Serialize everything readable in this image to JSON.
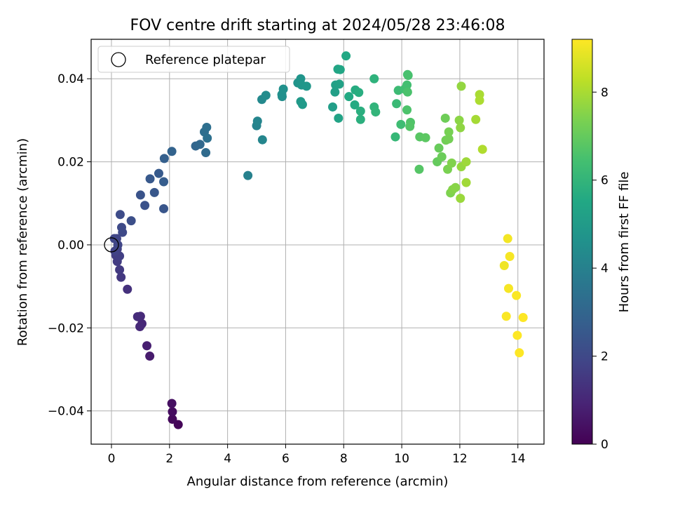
{
  "chart_data": {
    "type": "scatter",
    "title": "FOV centre drift starting at 2024/05/28 23:46:08",
    "xlabel": "Angular distance from reference (arcmin)",
    "ylabel": "Rotation from reference (arcmin)",
    "xlim": [
      -0.7,
      14.9
    ],
    "ylim": [
      -0.048,
      0.0495
    ],
    "xticks": [
      0,
      2,
      4,
      6,
      8,
      10,
      12,
      14
    ],
    "yticks": [
      -0.04,
      -0.02,
      0.0,
      0.02,
      0.04
    ],
    "ytick_labels": [
      "−0.04",
      "−0.02",
      "0.00",
      "0.02",
      "0.04"
    ],
    "grid": true,
    "legend": {
      "placement": "top-left",
      "entries": [
        {
          "label": "Reference platepar",
          "marker": "open-circle"
        }
      ]
    },
    "reference_point": {
      "x": 0.0,
      "y": 0.0
    },
    "colorbar": {
      "label": "Hours from first FF file",
      "range": [
        0,
        9.2
      ],
      "ticks": [
        0,
        2,
        4,
        6,
        8
      ],
      "colormap": "viridis"
    },
    "series": [
      {
        "points": [
          [
            2.3,
            -0.0433,
            0.1
          ],
          [
            2.1,
            -0.042,
            0.2
          ],
          [
            2.1,
            -0.0402,
            0.3
          ],
          [
            2.08,
            -0.0382,
            0.4
          ],
          [
            1.32,
            -0.0268,
            0.7
          ],
          [
            1.22,
            -0.0243,
            0.8
          ],
          [
            1.05,
            -0.019,
            1.0
          ],
          [
            0.98,
            -0.0197,
            1.05
          ],
          [
            1.0,
            -0.0172,
            1.1
          ],
          [
            0.9,
            -0.0173,
            1.15
          ],
          [
            0.55,
            -0.0107,
            1.3
          ],
          [
            0.33,
            -0.0078,
            1.5
          ],
          [
            0.28,
            -0.006,
            1.55
          ],
          [
            0.2,
            -0.004,
            1.6
          ],
          [
            0.15,
            -0.0025,
            1.65
          ],
          [
            0.28,
            -0.0027,
            1.7
          ],
          [
            0.2,
            -0.001,
            1.75
          ],
          [
            0.12,
            -0.0015,
            1.8
          ],
          [
            0.18,
            0.0015,
            1.85
          ],
          [
            0.22,
            0.0,
            1.9
          ],
          [
            0.1,
            0.0015,
            1.9
          ],
          [
            0.38,
            0.003,
            2.0
          ],
          [
            0.35,
            0.0042,
            2.05
          ],
          [
            0.3,
            0.0073,
            2.1
          ],
          [
            0.68,
            0.0058,
            2.2
          ],
          [
            1.15,
            0.0095,
            2.3
          ],
          [
            1.0,
            0.012,
            2.35
          ],
          [
            1.8,
            0.0087,
            2.45
          ],
          [
            1.48,
            0.0126,
            2.5
          ],
          [
            1.33,
            0.0159,
            2.55
          ],
          [
            1.63,
            0.0172,
            2.6
          ],
          [
            1.8,
            0.0152,
            2.7
          ],
          [
            1.82,
            0.0208,
            2.8
          ],
          [
            2.08,
            0.0225,
            2.9
          ],
          [
            2.9,
            0.0238,
            3.0
          ],
          [
            3.05,
            0.0242,
            3.1
          ],
          [
            3.25,
            0.0222,
            3.2
          ],
          [
            3.2,
            0.0272,
            3.3
          ],
          [
            3.28,
            0.0283,
            3.35
          ],
          [
            3.3,
            0.0257,
            3.4
          ],
          [
            4.7,
            0.0167,
            4.0
          ],
          [
            5.0,
            0.0287,
            4.1
          ],
          [
            5.03,
            0.0298,
            4.15
          ],
          [
            5.2,
            0.0253,
            4.2
          ],
          [
            5.18,
            0.035,
            4.3
          ],
          [
            5.32,
            0.036,
            4.4
          ],
          [
            5.88,
            0.0357,
            4.5
          ],
          [
            5.87,
            0.0362,
            4.55
          ],
          [
            5.92,
            0.0375,
            4.6
          ],
          [
            6.42,
            0.039,
            4.7
          ],
          [
            6.52,
            0.04,
            4.75
          ],
          [
            6.55,
            0.0385,
            4.8
          ],
          [
            6.72,
            0.0382,
            4.85
          ],
          [
            6.52,
            0.0345,
            4.9
          ],
          [
            6.58,
            0.0338,
            4.95
          ],
          [
            7.62,
            0.0332,
            5.1
          ],
          [
            7.7,
            0.0368,
            5.15
          ],
          [
            7.72,
            0.0385,
            5.2
          ],
          [
            7.85,
            0.0387,
            5.25
          ],
          [
            7.82,
            0.0305,
            5.3
          ],
          [
            7.8,
            0.0423,
            5.4
          ],
          [
            7.88,
            0.0422,
            5.45
          ],
          [
            8.08,
            0.0455,
            5.5
          ],
          [
            8.18,
            0.0357,
            5.55
          ],
          [
            8.38,
            0.0337,
            5.6
          ],
          [
            8.4,
            0.0373,
            5.65
          ],
          [
            8.52,
            0.0367,
            5.7
          ],
          [
            8.58,
            0.0322,
            5.75
          ],
          [
            8.58,
            0.0302,
            5.8
          ],
          [
            9.05,
            0.04,
            5.9
          ],
          [
            9.05,
            0.0332,
            5.95
          ],
          [
            9.1,
            0.032,
            6.0
          ],
          [
            9.78,
            0.026,
            6.1
          ],
          [
            9.82,
            0.034,
            6.2
          ],
          [
            9.88,
            0.0372,
            6.25
          ],
          [
            9.97,
            0.029,
            6.3
          ],
          [
            10.1,
            0.0375,
            6.35
          ],
          [
            10.18,
            0.0385,
            6.4
          ],
          [
            10.2,
            0.041,
            6.45
          ],
          [
            10.22,
            0.0408,
            6.5
          ],
          [
            10.2,
            0.0368,
            6.55
          ],
          [
            10.18,
            0.0325,
            6.6
          ],
          [
            10.3,
            0.0295,
            6.65
          ],
          [
            10.28,
            0.0285,
            6.7
          ],
          [
            10.6,
            0.0182,
            6.75
          ],
          [
            10.62,
            0.026,
            6.8
          ],
          [
            10.82,
            0.0258,
            6.85
          ],
          [
            11.22,
            0.02,
            7.0
          ],
          [
            11.28,
            0.0233,
            7.05
          ],
          [
            11.38,
            0.0212,
            7.1
          ],
          [
            11.5,
            0.0305,
            7.15
          ],
          [
            11.52,
            0.0252,
            7.2
          ],
          [
            11.62,
            0.0255,
            7.25
          ],
          [
            11.62,
            0.0272,
            7.3
          ],
          [
            11.58,
            0.0182,
            7.35
          ],
          [
            11.68,
            0.0125,
            7.4
          ],
          [
            11.72,
            0.0197,
            7.45
          ],
          [
            11.75,
            0.0133,
            7.5
          ],
          [
            11.85,
            0.0138,
            7.55
          ],
          [
            11.98,
            0.03,
            7.6
          ],
          [
            12.02,
            0.0282,
            7.65
          ],
          [
            12.05,
            0.0382,
            7.7
          ],
          [
            12.05,
            0.0188,
            7.75
          ],
          [
            12.02,
            0.0112,
            7.8
          ],
          [
            12.22,
            0.02,
            7.85
          ],
          [
            12.22,
            0.015,
            7.9
          ],
          [
            12.55,
            0.0302,
            7.95
          ],
          [
            12.68,
            0.0362,
            8.0
          ],
          [
            12.68,
            0.0348,
            8.05
          ],
          [
            12.78,
            0.023,
            8.1
          ],
          [
            13.53,
            -0.005,
            9.0
          ],
          [
            13.65,
            0.0015,
            9.05
          ],
          [
            13.72,
            -0.0028,
            9.1
          ],
          [
            13.68,
            -0.0105,
            9.1
          ],
          [
            13.6,
            -0.0172,
            9.15
          ],
          [
            13.95,
            -0.0122,
            9.15
          ],
          [
            13.98,
            -0.0218,
            9.2
          ],
          [
            14.05,
            -0.026,
            9.2
          ],
          [
            14.18,
            -0.0175,
            9.2
          ]
        ]
      }
    ]
  }
}
